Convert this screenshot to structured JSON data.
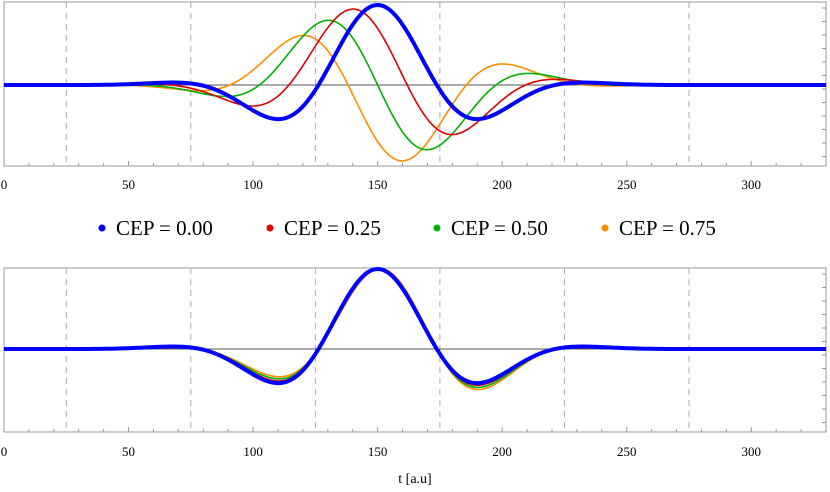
{
  "chart_data": [
    {
      "type": "line",
      "panel": "top",
      "xlim": [
        0,
        330
      ],
      "x_ticks": [
        "0",
        "50",
        "100",
        "150",
        "200",
        "250",
        "300"
      ],
      "x_tick_values": [
        0,
        50,
        100,
        150,
        200,
        250,
        300
      ],
      "vertical_gridlines": [
        25,
        75,
        125,
        175,
        225,
        275
      ],
      "grid": "dashed vertical lines",
      "series": [
        {
          "name": "CEP = 0.00",
          "color": "#0000ff",
          "cep": 0.0
        },
        {
          "name": "CEP = 0.25",
          "color": "#e00000",
          "cep": 0.25
        },
        {
          "name": "CEP = 0.50",
          "color": "#00b000",
          "cep": 0.5
        },
        {
          "name": "CEP = 0.75",
          "color": "#ff8c00",
          "cep": 0.75
        }
      ],
      "model": {
        "center": 150,
        "width": 47,
        "period": 95,
        "t_start": 0,
        "t_end": 330
      }
    },
    {
      "type": "line",
      "panel": "bottom",
      "xlim": [
        0,
        330
      ],
      "x_ticks": [
        "0",
        "50",
        "100",
        "150",
        "200",
        "250",
        "300"
      ],
      "x_tick_values": [
        0,
        50,
        100,
        150,
        200,
        250,
        300
      ],
      "vertical_gridlines": [
        25,
        75,
        125,
        175,
        225,
        275
      ],
      "grid": "dashed vertical lines",
      "xlabel": "t  [a.u]",
      "series": [
        {
          "name": "CEP = 0.00",
          "color": "#0000ff",
          "cep": 0.0
        },
        {
          "name": "CEP = 0.25",
          "color": "#e00000",
          "cep": 0.25
        },
        {
          "name": "CEP = 0.50",
          "color": "#00b000",
          "cep": 0.5
        },
        {
          "name": "CEP = 0.75",
          "color": "#ff8c00",
          "cep": 0.75
        }
      ],
      "model": {
        "center": 150,
        "width": 47,
        "period": 95,
        "t_start": 0,
        "t_end": 330
      }
    }
  ],
  "legend": {
    "placement": "between panels",
    "entries": [
      {
        "label": "CEP = 0.00",
        "color": "#0000ff"
      },
      {
        "label": "CEP = 0.25",
        "color": "#e00000"
      },
      {
        "label": "CEP = 0.50",
        "color": "#00b000"
      },
      {
        "label": "CEP = 0.75",
        "color": "#ff8c00"
      }
    ]
  },
  "colors": {
    "frame": "#999999",
    "zero_line": "#555555",
    "grid": "#aaaaaa"
  }
}
